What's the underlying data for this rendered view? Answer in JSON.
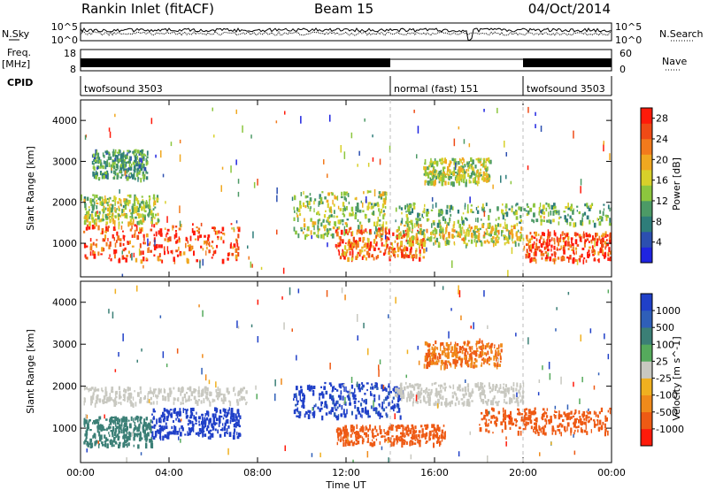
{
  "header": {
    "station": "Rankin Inlet (fitACF)",
    "beam": "Beam 15",
    "date": "04/Oct/2014"
  },
  "top_panels": {
    "nsky_label": "N.Sky",
    "nsky_ticks": [
      "10^5",
      "10^0"
    ],
    "nsearch_label": "N.Search",
    "freq_label": "Freq.",
    "freq_unit": "[MHz]",
    "freq_ticks": [
      "18",
      "8"
    ],
    "nave_label": "Nave",
    "nave_ticks": [
      "60",
      "0"
    ],
    "cpid_label": "CPID",
    "cpid_segments": [
      {
        "label": "twofsound 3503",
        "start_h": 0,
        "end_h": 14
      },
      {
        "label": "normal (fast) 151",
        "start_h": 14,
        "end_h": 20
      },
      {
        "label": "twofsound 3503",
        "start_h": 20,
        "end_h": 24
      }
    ]
  },
  "axes": {
    "ylabel": "Slant Range [km]",
    "xlabel": "Time UT",
    "y_ticks": [
      "1000",
      "2000",
      "3000",
      "4000"
    ],
    "x_ticks": [
      "00:00",
      "04:00",
      "08:00",
      "12:00",
      "16:00",
      "20:00",
      "00:00"
    ]
  },
  "chart_data": [
    {
      "type": "heatmap",
      "title": "",
      "xlabel": "Time UT",
      "ylabel": "Slant Range [km]",
      "xlim": [
        0,
        24
      ],
      "ylim": [
        180,
        4500
      ],
      "x_unit": "hours UT",
      "colorbar": {
        "label": "Power [dB]",
        "ticks": [
          "4",
          "8",
          "12",
          "16",
          "20",
          "24",
          "28"
        ],
        "range": [
          0,
          30
        ],
        "colors": [
          "#1f24e0",
          "#2c4fb0",
          "#2e7d7a",
          "#4c9a66",
          "#8cc63e",
          "#d8d02a",
          "#f0a820",
          "#f27a1c",
          "#ef4a16",
          "#ff1a0a"
        ]
      },
      "regions": [
        {
          "t0": 0.1,
          "t1": 7.2,
          "r0": 600,
          "r1": 1500,
          "value": 26
        },
        {
          "t0": 0.1,
          "t1": 3.5,
          "r0": 1500,
          "r1": 2200,
          "value": 14
        },
        {
          "t0": 0.5,
          "t1": 3.0,
          "r0": 2600,
          "r1": 3300,
          "value": 10
        },
        {
          "t0": 9.6,
          "t1": 13.8,
          "r0": 1200,
          "r1": 2300,
          "value": 14
        },
        {
          "t0": 11.5,
          "t1": 15.5,
          "r0": 650,
          "r1": 1400,
          "value": 24
        },
        {
          "t0": 14.2,
          "t1": 24,
          "r0": 1500,
          "r1": 2000,
          "value": 12
        },
        {
          "t0": 14.2,
          "t1": 20,
          "r0": 1000,
          "r1": 1500,
          "value": 16
        },
        {
          "t0": 15.5,
          "t1": 18.5,
          "r0": 2500,
          "r1": 3100,
          "value": 15
        },
        {
          "t0": 20,
          "t1": 24,
          "r0": 600,
          "r1": 1300,
          "value": 26
        }
      ]
    },
    {
      "type": "heatmap",
      "title": "",
      "xlabel": "Time UT",
      "ylabel": "Slant Range [km]",
      "xlim": [
        0,
        24
      ],
      "ylim": [
        180,
        4500
      ],
      "x_unit": "hours UT",
      "colorbar": {
        "label": "Velocity [m s^-1]",
        "ticks": [
          "1000",
          "500",
          "100",
          "25",
          "-25",
          "-100",
          "-500",
          "-1000"
        ],
        "range": [
          -1200,
          1200
        ],
        "colors": [
          "#2040c8",
          "#2f5fb8",
          "#3b7f76",
          "#55aa5c",
          "#c8c8c0",
          "#f0b020",
          "#f08a1a",
          "#ee5a14",
          "#ff1a0a"
        ]
      },
      "regions": [
        {
          "t0": 0.1,
          "t1": 3.2,
          "r0": 600,
          "r1": 1300,
          "value": 150
        },
        {
          "t0": 0.1,
          "t1": 7.5,
          "r0": 1600,
          "r1": 2000,
          "value": 0
        },
        {
          "t0": 3.2,
          "t1": 7.2,
          "r0": 800,
          "r1": 1500,
          "value": 900
        },
        {
          "t0": 9.6,
          "t1": 14.5,
          "r0": 1300,
          "r1": 2100,
          "value": 800
        },
        {
          "t0": 11.5,
          "t1": 16.5,
          "r0": 650,
          "r1": 1100,
          "value": -500
        },
        {
          "t0": 14.2,
          "t1": 20,
          "r0": 1600,
          "r1": 2100,
          "value": 0
        },
        {
          "t0": 15.5,
          "t1": 19,
          "r0": 2500,
          "r1": 3100,
          "value": -400
        },
        {
          "t0": 18,
          "t1": 24,
          "r0": 900,
          "r1": 1500,
          "value": -500
        }
      ]
    }
  ]
}
